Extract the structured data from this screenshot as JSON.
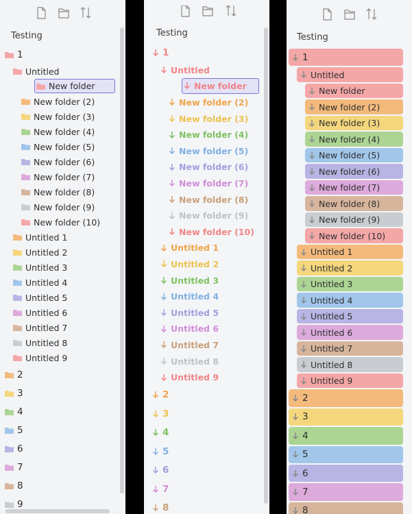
{
  "panels": [
    {
      "vault": "Testing",
      "tree": [
        {
          "label": "1",
          "children": [
            {
              "label": "Untitled",
              "children": [
                {
                  "label": "New folder",
                  "selected": true
                },
                {
                  "label": "New folder (2)"
                },
                {
                  "label": "New folder (3)"
                },
                {
                  "label": "New folder (4)"
                },
                {
                  "label": "New folder (5)"
                },
                {
                  "label": "New folder (6)"
                },
                {
                  "label": "New folder (7)"
                },
                {
                  "label": "New folder (8)"
                },
                {
                  "label": "New folder (9)"
                },
                {
                  "label": "New folder (10)"
                }
              ]
            },
            {
              "label": "Untitled 1"
            },
            {
              "label": "Untitled 2"
            },
            {
              "label": "Untitled 3"
            },
            {
              "label": "Untitled 4"
            },
            {
              "label": "Untitled 5"
            },
            {
              "label": "Untitled 6"
            },
            {
              "label": "Untitled 7"
            },
            {
              "label": "Untitled 8"
            },
            {
              "label": "Untitled 9"
            }
          ]
        },
        {
          "label": "2"
        },
        {
          "label": "3"
        },
        {
          "label": "4"
        },
        {
          "label": "5"
        },
        {
          "label": "6"
        },
        {
          "label": "7"
        },
        {
          "label": "8"
        },
        {
          "label": "9"
        }
      ]
    },
    {
      "vault": "Testing",
      "tree": [
        {
          "label": "1",
          "children": [
            {
              "label": "Untitled",
              "children": [
                {
                  "label": "New folder",
                  "selected": true
                },
                {
                  "label": "New folder (2)"
                },
                {
                  "label": "New folder (3)"
                },
                {
                  "label": "New folder (4)"
                },
                {
                  "label": "New folder (5)"
                },
                {
                  "label": "New folder (6)"
                },
                {
                  "label": "New folder (7)"
                },
                {
                  "label": "New folder (8)"
                },
                {
                  "label": "New folder (9)"
                },
                {
                  "label": "New folder (10)"
                }
              ]
            },
            {
              "label": "Untitled 1"
            },
            {
              "label": "Untitled 2"
            },
            {
              "label": "Untitled 3"
            },
            {
              "label": "Untitled 4"
            },
            {
              "label": "Untitled 5"
            },
            {
              "label": "Untitled 6"
            },
            {
              "label": "Untitled 7"
            },
            {
              "label": "Untitled 8"
            },
            {
              "label": "Untitled 9"
            }
          ]
        },
        {
          "label": "2"
        },
        {
          "label": "3"
        },
        {
          "label": "4"
        },
        {
          "label": "5"
        },
        {
          "label": "6"
        },
        {
          "label": "7"
        },
        {
          "label": "8"
        }
      ]
    },
    {
      "vault": "Testing",
      "tree": [
        {
          "label": "1",
          "children": [
            {
              "label": "Untitled",
              "children": [
                {
                  "label": "New folder"
                },
                {
                  "label": "New folder (2)"
                },
                {
                  "label": "New folder (3)"
                },
                {
                  "label": "New folder (4)"
                },
                {
                  "label": "New folder (5)"
                },
                {
                  "label": "New folder (6)"
                },
                {
                  "label": "New folder (7)"
                },
                {
                  "label": "New folder (8)"
                },
                {
                  "label": "New folder (9)"
                },
                {
                  "label": "New folder (10)"
                }
              ]
            },
            {
              "label": "Untitled 1"
            },
            {
              "label": "Untitled 2"
            },
            {
              "label": "Untitled 3"
            },
            {
              "label": "Untitled 4"
            },
            {
              "label": "Untitled 5"
            },
            {
              "label": "Untitled 6"
            },
            {
              "label": "Untitled 7"
            },
            {
              "label": "Untitled 8"
            },
            {
              "label": "Untitled 9"
            }
          ]
        },
        {
          "label": "2"
        },
        {
          "label": "3"
        },
        {
          "label": "4"
        },
        {
          "label": "5"
        },
        {
          "label": "6"
        },
        {
          "label": "7"
        },
        {
          "label": "8"
        }
      ]
    }
  ]
}
